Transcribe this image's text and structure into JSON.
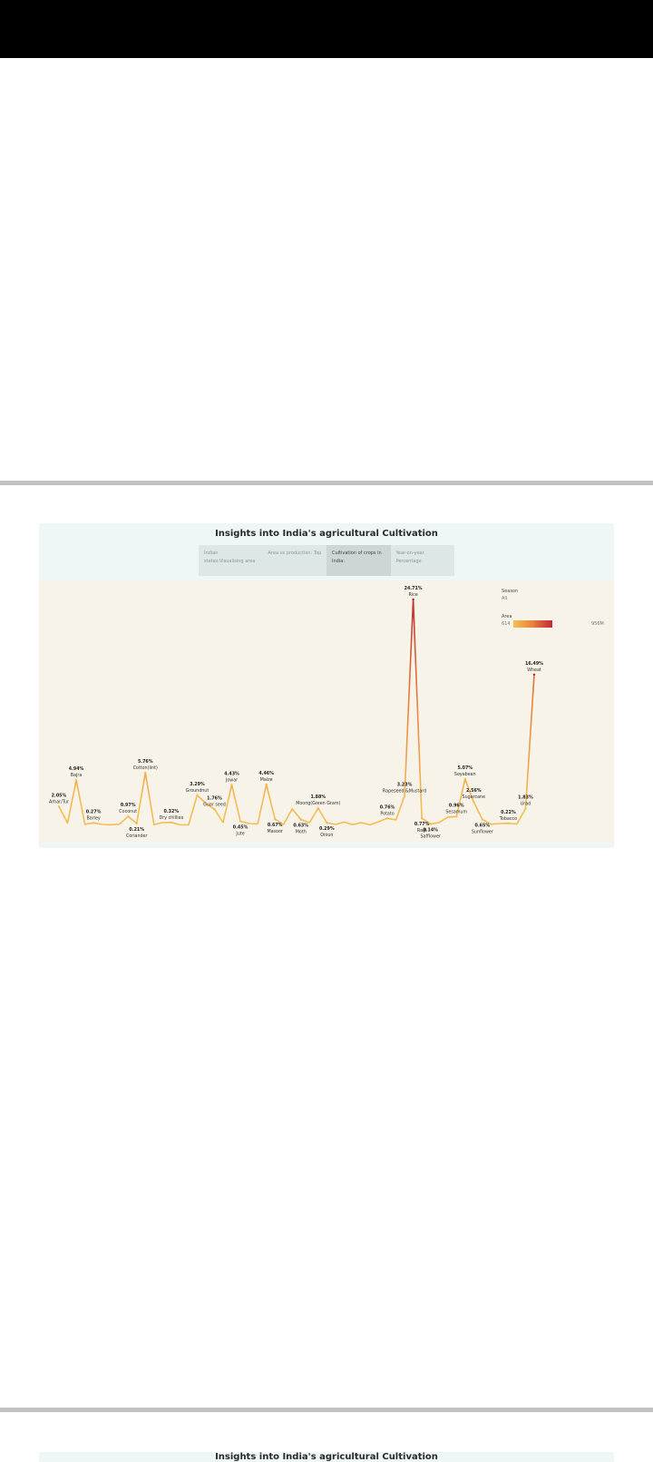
{
  "colors": {
    "line_low": "#f5bb55",
    "line_mid": "#e8803e",
    "line_high": "#b7202f",
    "chart_bg": "#f7f3e8",
    "dashboard_bg": "#eff6f6"
  },
  "dashboard": {
    "title": "Insights into India's agricultural Cultivation",
    "tabs": [
      {
        "label": "Indian states:Visualising area",
        "active": false
      },
      {
        "label": "Area vs production: Top",
        "active": false
      },
      {
        "label": "Cultivation of crops in India:",
        "active": true
      },
      {
        "label": "Year-on-year Percentage",
        "active": false
      }
    ]
  },
  "legend": {
    "season_title": "Season",
    "season_value": "All",
    "area_title": "Area",
    "area_min": "614",
    "area_max": "956M"
  },
  "dashboard2": {
    "title": "Insights into India's agricultural Cultivation"
  },
  "chart_data": {
    "type": "line",
    "title": "",
    "xlabel": "",
    "ylabel": "",
    "ylim": [
      0,
      25
    ],
    "grid": false,
    "legend": "top-right",
    "points": [
      {
        "crop": "Arhar/Tur",
        "value": 2.05,
        "label": "2.05%",
        "pos": "above"
      },
      {
        "crop": "",
        "value": 0.25
      },
      {
        "crop": "Bajra",
        "value": 4.94,
        "label": "4.94%",
        "pos": "above"
      },
      {
        "crop": "",
        "value": 0.12
      },
      {
        "crop": "Barley",
        "value": 0.27,
        "label": "0.27%",
        "pos": "above"
      },
      {
        "crop": "",
        "value": 0.1
      },
      {
        "crop": "",
        "value": 0.06
      },
      {
        "crop": "",
        "value": 0.12
      },
      {
        "crop": "Coconut",
        "value": 0.97,
        "label": "0.97%",
        "pos": "above"
      },
      {
        "crop": "Coriander",
        "value": 0.21,
        "label": "0.21%",
        "pos": "below"
      },
      {
        "crop": "Cotton(lint)",
        "value": 5.76,
        "label": "5.76%",
        "pos": "above"
      },
      {
        "crop": "",
        "value": 0.08
      },
      {
        "crop": "",
        "value": 0.3
      },
      {
        "crop": "Dry chillies",
        "value": 0.32,
        "label": "0.32%",
        "pos": "above"
      },
      {
        "crop": "",
        "value": 0.05
      },
      {
        "crop": "",
        "value": 0.06
      },
      {
        "crop": "Groundnut",
        "value": 3.29,
        "label": "3.29%",
        "pos": "above"
      },
      {
        "crop": "",
        "value": 2.4
      },
      {
        "crop": "Guar seed",
        "value": 1.76,
        "label": "1.76%",
        "pos": "above"
      },
      {
        "crop": "",
        "value": 0.3
      },
      {
        "crop": "Jowar",
        "value": 4.43,
        "label": "4.43%",
        "pos": "above"
      },
      {
        "crop": "Jute",
        "value": 0.45,
        "label": "0.45%",
        "pos": "below"
      },
      {
        "crop": "",
        "value": 0.2
      },
      {
        "crop": "",
        "value": 0.15
      },
      {
        "crop": "Maize",
        "value": 4.46,
        "label": "4.46%",
        "pos": "above"
      },
      {
        "crop": "Masoor",
        "value": 0.67,
        "label": "0.67%",
        "pos": "below"
      },
      {
        "crop": "",
        "value": 0.1
      },
      {
        "crop": "",
        "value": 1.8
      },
      {
        "crop": "Moth",
        "value": 0.63,
        "label": "0.63%",
        "pos": "below"
      },
      {
        "crop": "",
        "value": 0.3
      },
      {
        "crop": "Moong(Green Gram)",
        "value": 1.88,
        "label": "1.88%",
        "pos": "above"
      },
      {
        "crop": "Onion",
        "value": 0.29,
        "label": "0.29%",
        "pos": "below"
      },
      {
        "crop": "",
        "value": 0.1
      },
      {
        "crop": "",
        "value": 0.35
      },
      {
        "crop": "",
        "value": 0.08
      },
      {
        "crop": "",
        "value": 0.3
      },
      {
        "crop": "",
        "value": 0.05
      },
      {
        "crop": "",
        "value": 0.4
      },
      {
        "crop": "Potato",
        "value": 0.76,
        "label": "0.76%",
        "pos": "above"
      },
      {
        "crop": "",
        "value": 0.6
      },
      {
        "crop": "Rapeseed &Mustard",
        "value": 3.23,
        "label": "3.23%",
        "pos": "above"
      },
      {
        "crop": "Rice",
        "value": 24.71,
        "label": "24.71%",
        "pos": "above"
      },
      {
        "crop": "Ragi",
        "value": 0.77,
        "label": "0.77%",
        "pos": "below"
      },
      {
        "crop": "Safflower",
        "value": 0.14,
        "label": "0.14%",
        "pos": "below"
      },
      {
        "crop": "",
        "value": 0.3
      },
      {
        "crop": "",
        "value": 0.9
      },
      {
        "crop": "Sesamum",
        "value": 0.96,
        "label": "0.96%",
        "pos": "above"
      },
      {
        "crop": "Soyabean",
        "value": 5.07,
        "label": "5.07%",
        "pos": "above"
      },
      {
        "crop": "Sugarcane",
        "value": 2.56,
        "label": "2.56%",
        "pos": "above"
      },
      {
        "crop": "Sunflower",
        "value": 0.65,
        "label": "0.65%",
        "pos": "below"
      },
      {
        "crop": "",
        "value": 0.12
      },
      {
        "crop": "",
        "value": 0.2
      },
      {
        "crop": "Tobacco",
        "value": 0.22,
        "label": "0.22%",
        "pos": "above"
      },
      {
        "crop": "",
        "value": 0.15
      },
      {
        "crop": "Urad",
        "value": 1.83,
        "label": "1.83%",
        "pos": "above"
      },
      {
        "crop": "Wheat",
        "value": 16.49,
        "label": "16.49%",
        "pos": "above"
      }
    ]
  }
}
